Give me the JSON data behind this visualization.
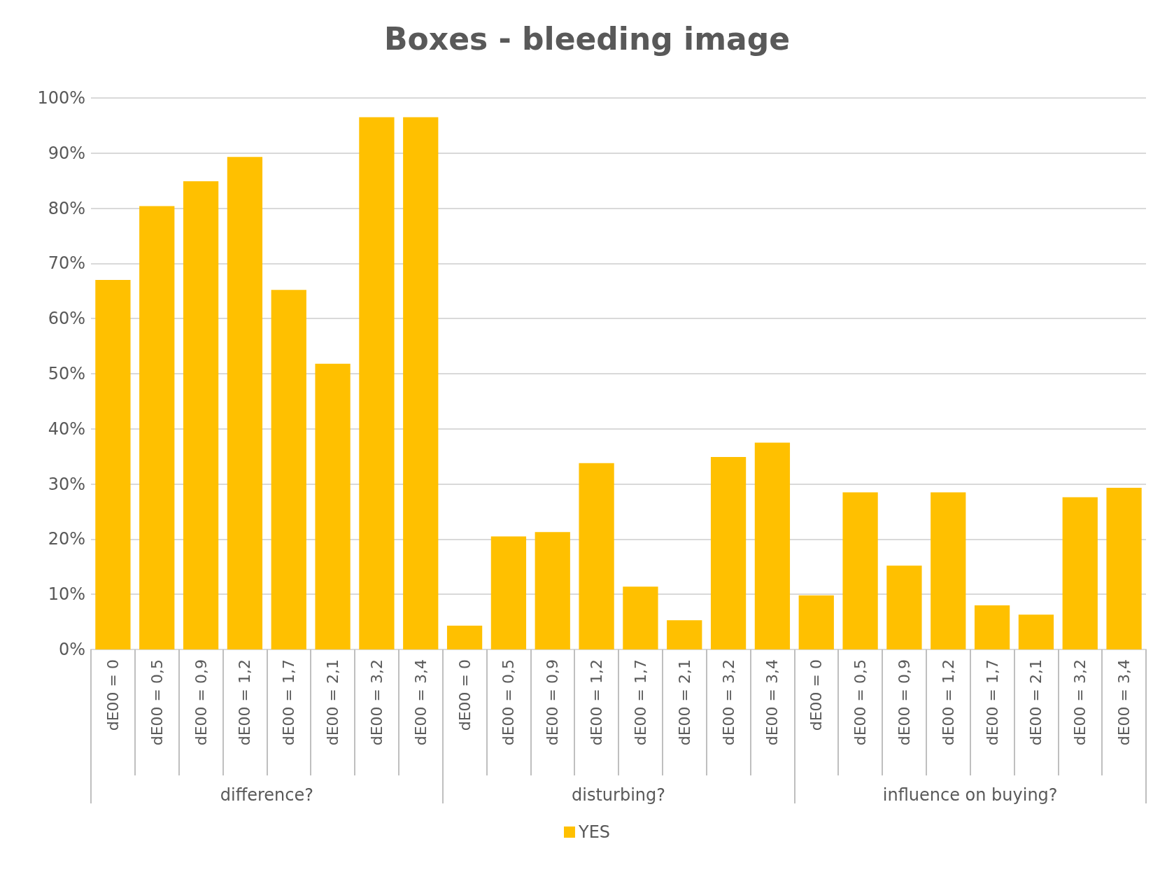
{
  "chart_data": {
    "type": "bar",
    "title": "Boxes - bleeding image",
    "categories": [
      "dE00 = 0",
      "dE00 = 0,5",
      "dE00 = 0,9",
      "dE00 = 1,2",
      "dE00 = 1,7",
      "dE00 = 2,1",
      "dE00 = 3,2",
      "dE00 = 3,4",
      "dE00 = 0",
      "dE00 = 0,5",
      "dE00 = 0,9",
      "dE00 = 1,2",
      "dE00 = 1,7",
      "dE00 = 2,1",
      "dE00 = 3,2",
      "dE00 = 3,4",
      "dE00 = 0",
      "dE00 = 0,5",
      "dE00 = 0,9",
      "dE00 = 1,2",
      "dE00 = 1,7",
      "dE00 = 2,1",
      "dE00 = 3,2",
      "dE00 = 3,4"
    ],
    "series": [
      {
        "name": "YES",
        "color": "#ffc000",
        "values": [
          67,
          80.4,
          84.9,
          89.3,
          65.2,
          51.8,
          96.5,
          96.5,
          4.3,
          20.5,
          21.3,
          33.8,
          11.4,
          5.3,
          34.9,
          37.5,
          9.8,
          28.5,
          15.2,
          28.5,
          8,
          6.3,
          27.6,
          29.3
        ]
      }
    ],
    "annotations": [
      "difference?",
      "disturbing?",
      "influence on buying?"
    ],
    "ylim": [
      0,
      100
    ],
    "yticks": [
      {
        "value": 0,
        "label": "0%"
      },
      {
        "value": 10,
        "label": "10%"
      },
      {
        "value": 20,
        "label": "20%"
      },
      {
        "value": 30,
        "label": "30%"
      },
      {
        "value": 40,
        "label": "40%"
      },
      {
        "value": 50,
        "label": "50%"
      },
      {
        "value": 60,
        "label": "60%"
      },
      {
        "value": 70,
        "label": "70%"
      },
      {
        "value": 80,
        "label": "80%"
      },
      {
        "value": 90,
        "label": "90%"
      },
      {
        "value": 100,
        "label": "100%"
      }
    ],
    "grid": "y",
    "legend": "bottom"
  }
}
